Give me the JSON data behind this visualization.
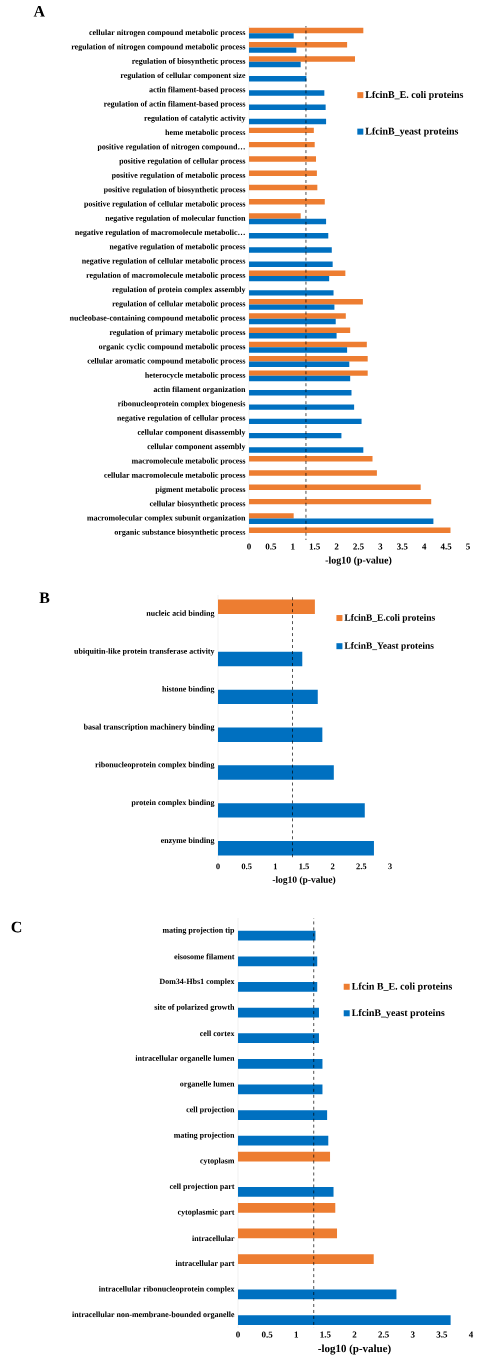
{
  "chart_data": [
    {
      "type": "bar",
      "orientation": "horizontal",
      "title": "A",
      "xlabel": "-log10 (p-value)",
      "legend": "right",
      "categories": [
        "cellular nitrogen compound metabolic process",
        "regulation of nitrogen compound metabolic process",
        "regulation of biosynthetic process",
        "regulation of cellular component size",
        "actin filament-based process",
        "regulation of actin filament-based process",
        "regulation of catalytic activity",
        "heme metabolic process",
        "positive regulation of nitrogen compound…",
        "positive regulation of cellular process",
        "positive regulation of metabolic process",
        "positive regulation of biosynthetic process",
        "positive regulation of cellular metabolic process",
        "negative regulation of molecular function",
        "negative regulation of macromolecule metabolic…",
        "negative regulation of metabolic process",
        "negative regulation of cellular metabolic process",
        "regulation of macromolecule metabolic process",
        "regulation of protein complex assembly",
        "regulation of cellular metabolic process",
        "nucleobase-containing compound metabolic process",
        "regulation of primary metabolic process",
        "organic cyclic compound metabolic process",
        "cellular aromatic compound metabolic process",
        "heterocycle metabolic process",
        "actin filament organization",
        "ribonucleoprotein complex biogenesis",
        "negative regulation of cellular process",
        "cellular component disassembly",
        "cellular component assembly",
        "macromolecule metabolic process",
        "cellular macromolecule metabolic process",
        "pigment metabolic process",
        "cellular biosynthetic process",
        "macromolecular complex subunit organization",
        "organic substance biosynthetic process"
      ],
      "series": [
        {
          "name": "LfcinB_E. coli proteins",
          "color": "#ed7d31",
          "values": [
            2.61,
            2.24,
            2.42,
            null,
            null,
            null,
            null,
            1.48,
            1.5,
            1.53,
            1.55,
            1.56,
            1.73,
            1.18,
            null,
            null,
            null,
            2.2,
            null,
            2.6,
            2.21,
            2.31,
            2.69,
            2.71,
            2.71,
            null,
            null,
            null,
            null,
            null,
            2.82,
            2.92,
            3.92,
            4.16,
            1.02,
            4.6
          ]
        },
        {
          "name": "LfcinB_yeast proteins",
          "color": "#0070c0",
          "values": [
            1.02,
            1.08,
            1.18,
            1.31,
            1.72,
            1.75,
            1.76,
            null,
            null,
            null,
            null,
            null,
            null,
            1.76,
            1.81,
            1.89,
            1.91,
            1.83,
            1.93,
            1.95,
            1.98,
            2.0,
            2.24,
            2.29,
            2.31,
            2.34,
            2.4,
            2.57,
            2.11,
            2.61,
            null,
            null,
            null,
            null,
            4.21,
            null
          ]
        }
      ],
      "xlim": [
        0,
        5
      ],
      "xticks": [
        0,
        0.5,
        1,
        1.5,
        2,
        2.5,
        3,
        3.5,
        4,
        4.5,
        5
      ],
      "ref_lines": [
        {
          "axis": "x",
          "value": 1.3,
          "line_style": "dashed"
        }
      ]
    },
    {
      "type": "bar",
      "orientation": "horizontal",
      "title": "B",
      "xlabel": "-log10 (p-value)",
      "legend": "top right",
      "categories": [
        "nucleic acid binding",
        "ubiquitin-like protein transferase activity",
        "histone binding",
        "basal transcription machinery binding",
        "ribonucleoprotein complex binding",
        "protein complex binding",
        "enzyme binding"
      ],
      "series": [
        {
          "name": "LfcinB_E.coli proteins",
          "color": "#ed7d31",
          "values": [
            1.69,
            null,
            null,
            null,
            null,
            null,
            null
          ]
        },
        {
          "name": "LfcinB_Yeast proteins",
          "color": "#0070c0",
          "values": [
            null,
            1.47,
            1.74,
            1.82,
            2.02,
            2.56,
            2.72
          ]
        }
      ],
      "xlim": [
        0,
        3
      ],
      "xticks": [
        0,
        0.5,
        1,
        1.5,
        2,
        2.5,
        3
      ],
      "ref_lines": [
        {
          "axis": "x",
          "value": 1.3,
          "line_style": "dashed"
        }
      ]
    },
    {
      "type": "bar",
      "orientation": "horizontal",
      "title": "C",
      "xlabel": "-log10 (p-value)",
      "legend": "right",
      "categories": [
        "mating projection tip",
        "eisosome filament",
        "Dom34-Hbs1 complex",
        "site of polarized growth",
        "cell cortex",
        "intracellular organelle lumen",
        "organelle lumen",
        "cell projection",
        "mating projection",
        "cytoplasm",
        "cell projection part",
        "cytoplasmic part",
        "intracellular",
        "intracellular part",
        "intracellular ribonucleoprotein complex",
        "intracellular non-membrane-bounded organelle"
      ],
      "series": [
        {
          "name": "Lfcin B_E. coli proteins",
          "color": "#ed7d31",
          "values": [
            null,
            null,
            null,
            null,
            null,
            null,
            null,
            null,
            null,
            1.58,
            null,
            1.67,
            1.7,
            2.33,
            null,
            null
          ]
        },
        {
          "name": "LfcinB_yeast proteins",
          "color": "#0070c0",
          "values": [
            1.33,
            1.36,
            1.36,
            1.39,
            1.39,
            1.45,
            1.45,
            1.53,
            1.55,
            null,
            1.64,
            null,
            null,
            null,
            2.72,
            3.65
          ]
        }
      ],
      "xlim": [
        0,
        4
      ],
      "xticks": [
        0,
        0.5,
        1,
        1.5,
        2,
        2.5,
        3,
        3.5,
        4
      ],
      "ref_lines": [
        {
          "axis": "x",
          "value": 1.3,
          "line_style": "dashed"
        }
      ]
    }
  ]
}
